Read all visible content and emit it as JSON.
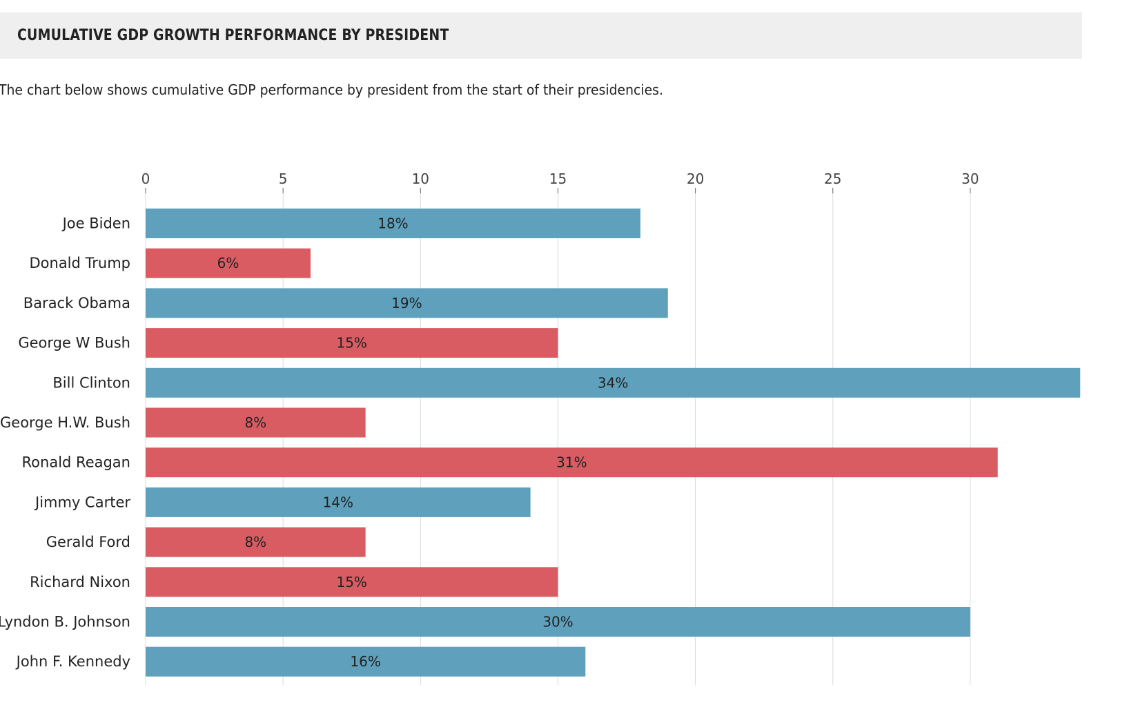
{
  "header": {
    "title": "CUMULATIVE GDP GROWTH PERFORMANCE BY PRESIDENT",
    "subtitle": "The chart below shows cumulative GDP performance by president from the start of their presidencies."
  },
  "colors": {
    "democrat": "#5fa0bc",
    "republican": "#da5c63",
    "grid": "#d9d9d9",
    "text": "#222222",
    "header_bg": "#efefef"
  },
  "chart_data": {
    "type": "bar",
    "orientation": "horizontal",
    "title": "CUMULATIVE GDP GROWTH PERFORMANCE BY PRESIDENT",
    "xlim": [
      0,
      34
    ],
    "x_ticks": [
      0,
      5,
      10,
      15,
      20,
      25,
      30
    ],
    "grid": true,
    "categories": [
      "Joe Biden",
      "Donald Trump",
      "Barack Obama",
      "George W Bush",
      "Bill Clinton",
      "George H.W. Bush",
      "Ronald Reagan",
      "Jimmy Carter",
      "Gerald Ford",
      "Richard Nixon",
      "Lyndon B. Johnson",
      "John F. Kennedy"
    ],
    "values": [
      18,
      6,
      19,
      15,
      34,
      8,
      31,
      14,
      8,
      15,
      30,
      16
    ],
    "labels": [
      "18%",
      "6%",
      "19%",
      "15%",
      "34%",
      "8%",
      "31%",
      "14%",
      "8%",
      "15%",
      "30%",
      "16%"
    ],
    "party": [
      "democrat",
      "republican",
      "democrat",
      "republican",
      "democrat",
      "republican",
      "republican",
      "democrat",
      "republican",
      "republican",
      "democrat",
      "democrat"
    ]
  }
}
